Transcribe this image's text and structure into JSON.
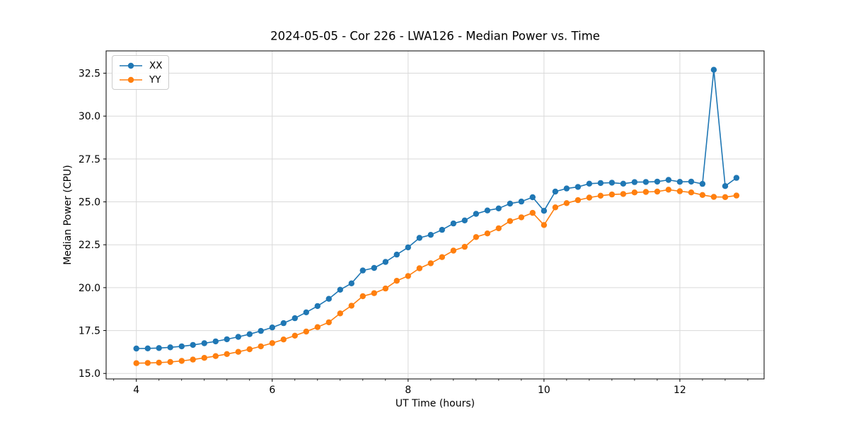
{
  "chart_data": {
    "type": "line",
    "title": "2024-05-05 - Cor 226 - LWA126 - Median Power vs. Time",
    "xlabel": "UT Time (hours)",
    "ylabel": "Median Power (CPU)",
    "x": [
      4.0,
      4.167,
      4.333,
      4.5,
      4.667,
      4.833,
      5.0,
      5.167,
      5.333,
      5.5,
      5.667,
      5.833,
      6.0,
      6.167,
      6.333,
      6.5,
      6.667,
      6.833,
      7.0,
      7.167,
      7.333,
      7.5,
      7.667,
      7.833,
      8.0,
      8.167,
      8.333,
      8.5,
      8.667,
      8.833,
      9.0,
      9.167,
      9.333,
      9.5,
      9.667,
      9.833,
      10.0,
      10.167,
      10.333,
      10.5,
      10.667,
      10.833,
      11.0,
      11.167,
      11.333,
      11.5,
      11.667,
      11.833,
      12.0,
      12.167,
      12.333,
      12.5,
      12.667,
      12.833
    ],
    "series": [
      {
        "name": "XX",
        "color": "#1f77b4",
        "values": [
          16.45,
          16.46,
          16.48,
          16.52,
          16.58,
          16.66,
          16.76,
          16.87,
          16.99,
          17.13,
          17.29,
          17.48,
          17.68,
          17.93,
          18.22,
          18.56,
          18.93,
          19.35,
          19.88,
          20.25,
          21.0,
          21.15,
          21.5,
          21.93,
          22.35,
          22.9,
          23.08,
          23.37,
          23.74,
          23.92,
          24.3,
          24.5,
          24.62,
          24.9,
          25.02,
          25.27,
          24.48,
          25.6,
          25.78,
          25.87,
          26.06,
          26.1,
          26.12,
          26.06,
          26.15,
          26.16,
          26.18,
          26.28,
          26.17,
          26.18,
          26.05,
          32.7,
          25.92,
          26.4
        ]
      },
      {
        "name": "YY",
        "color": "#ff7f0e",
        "values": [
          15.6,
          15.61,
          15.63,
          15.67,
          15.73,
          15.81,
          15.91,
          16.01,
          16.13,
          16.26,
          16.41,
          16.58,
          16.77,
          16.98,
          17.2,
          17.44,
          17.7,
          17.98,
          18.5,
          18.95,
          19.5,
          19.68,
          19.95,
          20.4,
          20.68,
          21.13,
          21.42,
          21.78,
          22.16,
          22.38,
          22.95,
          23.16,
          23.46,
          23.88,
          24.1,
          24.36,
          23.65,
          24.68,
          24.93,
          25.1,
          25.25,
          25.36,
          25.43,
          25.46,
          25.55,
          25.58,
          25.6,
          25.71,
          25.62,
          25.55,
          25.4,
          25.29,
          25.28,
          25.37
        ]
      }
    ],
    "xlim": [
      3.555,
      13.24
    ],
    "ylim": [
      14.68,
      33.8
    ],
    "xticks": {
      "values": [
        4,
        6,
        8,
        10,
        12
      ],
      "labels": [
        "4",
        "6",
        "8",
        "10",
        "12"
      ]
    },
    "yticks": {
      "values": [
        15.0,
        17.5,
        20.0,
        22.5,
        25.0,
        27.5,
        30.0,
        32.5
      ],
      "labels": [
        "15.0",
        "17.5",
        "20.0",
        "22.5",
        "25.0",
        "27.5",
        "30.0",
        "32.5"
      ]
    },
    "x_minor_interval": 0.33333,
    "grid": true,
    "legend_position": "upper-left",
    "colors": {
      "grid": "#d9d9d9",
      "spine": "#000000",
      "text": "#000000",
      "background": "#ffffff"
    }
  }
}
